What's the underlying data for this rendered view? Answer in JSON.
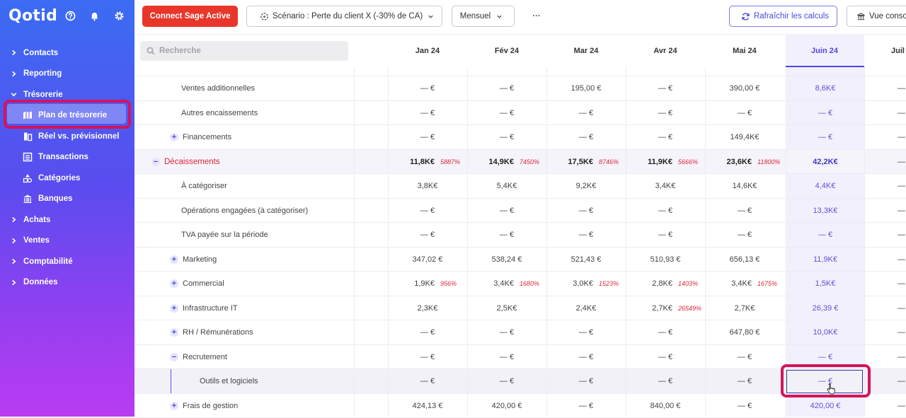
{
  "app": {
    "logo": "Qotid",
    "colors": {
      "accent": "#4f46e5",
      "danger": "#e0243d",
      "cta": "#e8362b",
      "highlight": "#d4145a"
    }
  },
  "header_icons": [
    "help-icon",
    "bell-icon",
    "gear-icon"
  ],
  "sidebar": {
    "items": [
      {
        "label": "Contacts",
        "type": "section"
      },
      {
        "label": "Reporting",
        "type": "section"
      },
      {
        "label": "Trésorerie",
        "type": "section-open"
      },
      {
        "label": "Plan de trésorerie",
        "type": "sub",
        "icon": "map-icon",
        "active": true
      },
      {
        "label": "Réel vs. prévisionnel",
        "type": "sub",
        "icon": "compare-icon"
      },
      {
        "label": "Transactions",
        "type": "sub",
        "icon": "list-icon"
      },
      {
        "label": "Catégories",
        "type": "sub",
        "icon": "shapes-icon"
      },
      {
        "label": "Banques",
        "type": "sub",
        "icon": "bank-icon"
      },
      {
        "label": "Achats",
        "type": "section"
      },
      {
        "label": "Ventes",
        "type": "section"
      },
      {
        "label": "Comptabilité",
        "type": "section"
      },
      {
        "label": "Données",
        "type": "section"
      }
    ]
  },
  "toolbar": {
    "connect": "Connect Sage Active",
    "scenario": "Scénario : Perte du client X (-30% de CA)",
    "period": "Mensuel",
    "more": "···",
    "refresh": "Rafraîchir les calculs",
    "view": "Vue conso"
  },
  "search": {
    "placeholder": "Recherche"
  },
  "months": [
    "Jan 24",
    "Fév 24",
    "Mar 24",
    "Avr 24",
    "Mai 24",
    "Juin 24",
    "Juil"
  ],
  "rows": [
    {
      "label": "Ventes additionnelles",
      "level": 2,
      "toggle": "",
      "values": [
        "— €",
        "— €",
        "195,00 €",
        "— €",
        "390,00 €",
        "8,6K€"
      ],
      "pcts": [
        "",
        "",
        "",
        "",
        "",
        ""
      ]
    },
    {
      "label": "Autres encaissements",
      "level": 2,
      "toggle": "",
      "values": [
        "— €",
        "— €",
        "— €",
        "— €",
        "— €",
        "— €"
      ],
      "pcts": [
        "",
        "",
        "",
        "",
        "",
        ""
      ]
    },
    {
      "label": "Financements",
      "level": 1,
      "toggle": "+",
      "values": [
        "— €",
        "— €",
        "— €",
        "— €",
        "149,4K€",
        "— €"
      ],
      "pcts": [
        "",
        "",
        "",
        "",
        "",
        ""
      ]
    },
    {
      "label": "Décaissements",
      "level": 0,
      "toggle": "−",
      "section": true,
      "values": [
        "11,8K€",
        "14,9K€",
        "17,5K€",
        "11,9K€",
        "23,6K€",
        "42,2K€"
      ],
      "pcts": [
        "5887%",
        "7450%",
        "8746%",
        "5666%",
        "11800%",
        ""
      ]
    },
    {
      "label": "À catégoriser",
      "level": 2,
      "toggle": "",
      "values": [
        "3,8K€",
        "5,4K€",
        "9,2K€",
        "3,4K€",
        "14,6K€",
        "4,4K€"
      ],
      "pcts": [
        "",
        "",
        "",
        "",
        "",
        ""
      ]
    },
    {
      "label": "Opérations engagées (à catégoriser)",
      "level": 2,
      "toggle": "",
      "values": [
        "— €",
        "— €",
        "— €",
        "— €",
        "— €",
        "13,3K€"
      ],
      "pcts": [
        "",
        "",
        "",
        "",
        "",
        ""
      ]
    },
    {
      "label": "TVA payée sur la période",
      "level": 2,
      "toggle": "",
      "values": [
        "— €",
        "— €",
        "— €",
        "— €",
        "— €",
        "— €"
      ],
      "pcts": [
        "",
        "",
        "",
        "",
        "",
        ""
      ]
    },
    {
      "label": "Marketing",
      "level": 1,
      "toggle": "+",
      "values": [
        "347,02 €",
        "538,24 €",
        "521,43 €",
        "510,93 €",
        "656,13 €",
        "11,9K€"
      ],
      "pcts": [
        "",
        "",
        "",
        "",
        "",
        ""
      ]
    },
    {
      "label": "Commercial",
      "level": 1,
      "toggle": "+",
      "values": [
        "1,9K€",
        "3,4K€",
        "3,0K€",
        "2,8K€",
        "3,4K€",
        "1,5K€"
      ],
      "pcts": [
        "956%",
        "1680%",
        "1523%",
        "1403%",
        "1675%",
        ""
      ]
    },
    {
      "label": "Infrastructure IT",
      "level": 1,
      "toggle": "+",
      "values": [
        "2,3K€",
        "2,5K€",
        "2,4K€",
        "2,7K€",
        "2,7K€",
        "26,39 €"
      ],
      "pcts": [
        "",
        "",
        "",
        "26549%",
        "",
        ""
      ]
    },
    {
      "label": "RH / Rémunérations",
      "level": 1,
      "toggle": "+",
      "values": [
        "— €",
        "— €",
        "— €",
        "— €",
        "647,80 €",
        "10,0K€"
      ],
      "pcts": [
        "",
        "",
        "",
        "",
        "",
        ""
      ]
    },
    {
      "label": "Recrutement",
      "level": 1,
      "toggle": "−",
      "values": [
        "— €",
        "— €",
        "— €",
        "— €",
        "— €",
        "— €"
      ],
      "pcts": [
        "",
        "",
        "",
        "",
        "",
        ""
      ]
    },
    {
      "label": "Outils et logiciels",
      "level": 3,
      "toggle": "",
      "highlighted": true,
      "values": [
        "— €",
        "— €",
        "— €",
        "— €",
        "— €",
        "— €"
      ],
      "pcts": [
        "",
        "",
        "",
        "",
        "",
        ""
      ]
    },
    {
      "label": "Frais de gestion",
      "level": 1,
      "toggle": "+",
      "values": [
        "424,13 €",
        "420,00 €",
        "— €",
        "840,00 €",
        "— €",
        "420,00 €"
      ],
      "pcts": [
        "",
        "",
        "",
        "",
        "",
        ""
      ]
    }
  ],
  "next_col_partial": "— €"
}
